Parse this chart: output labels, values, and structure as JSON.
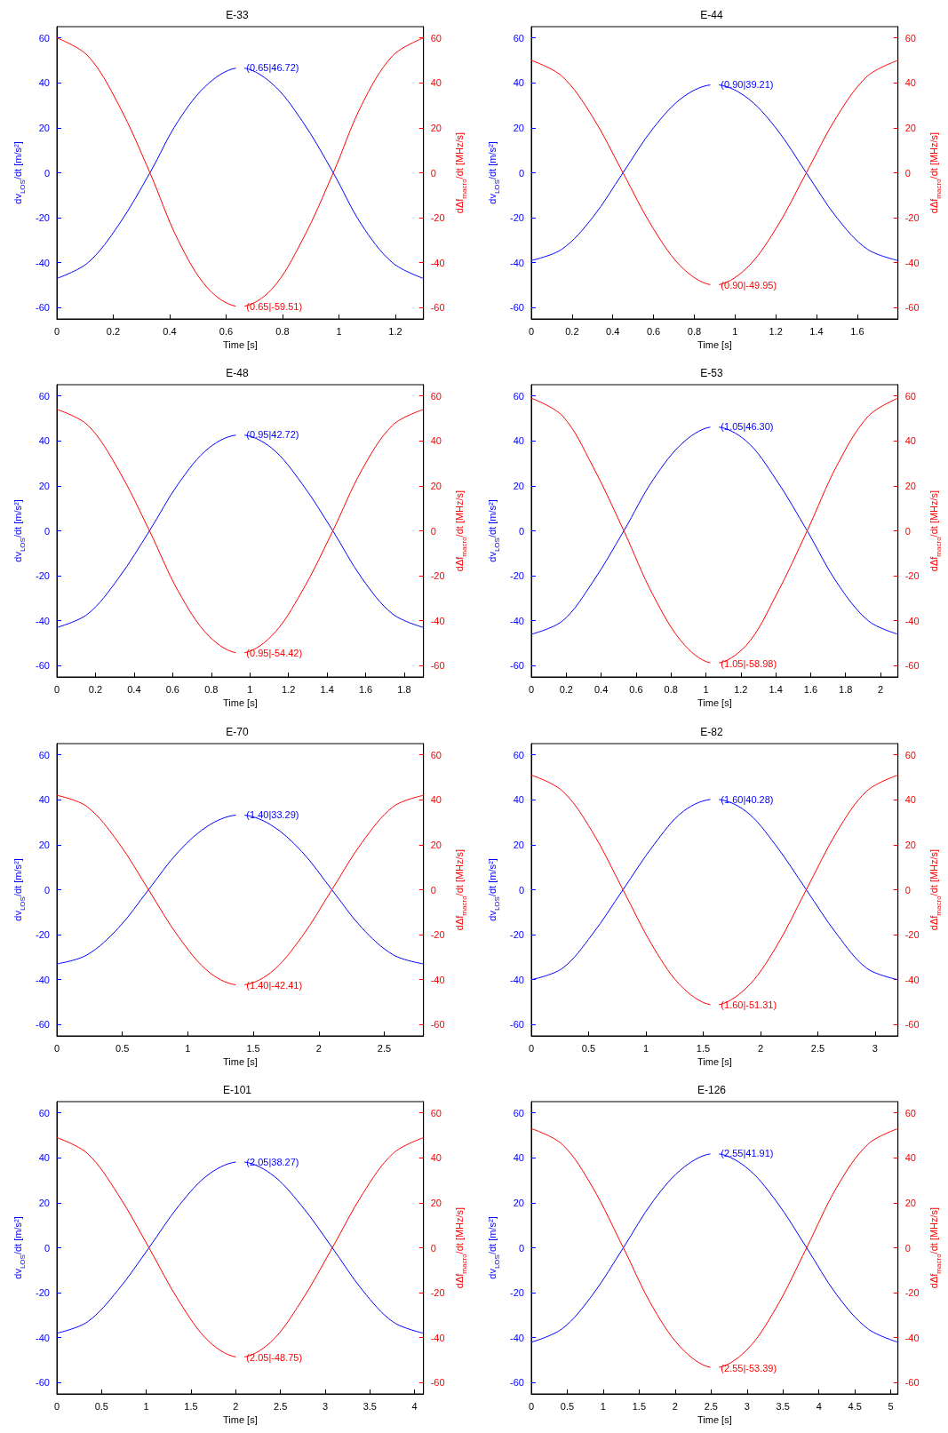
{
  "chart_data": [
    {
      "type": "line",
      "title": "E-33",
      "xlabel": "Time [s]",
      "ylabel": "dv$_{LOS}$/dt [m/s²]",
      "y2label": "dΔf$_{macro}$/dt [MHz/s]",
      "xlim": [
        0,
        1.3
      ],
      "xticks": [
        0,
        0.2,
        0.4,
        0.6,
        0.8,
        1,
        1.2
      ],
      "ylim": [
        -65,
        65
      ],
      "yticks": [
        -60,
        -40,
        -20,
        0,
        20,
        40,
        60
      ],
      "y2lim": [
        -65,
        65
      ],
      "y2ticks": [
        -60,
        -40,
        -20,
        0,
        20,
        40,
        60
      ],
      "x": [
        0,
        0.11,
        0.22,
        0.33,
        0.43,
        0.54,
        0.65,
        0.76,
        0.87,
        0.98,
        1.08,
        1.19,
        1.3
      ],
      "series": [
        {
          "color": "#0000ff",
          "values": [
            -47,
            -40,
            -23,
            0,
            23,
            40,
            46.72,
            40,
            23,
            0,
            -23,
            -40,
            -47
          ]
        },
        {
          "color": "#ff0000",
          "axis": "y2",
          "values": [
            60,
            52,
            30,
            0,
            -30,
            -52,
            -59.51,
            -52,
            -30,
            0,
            30,
            52,
            60
          ]
        }
      ],
      "annotations": [
        {
          "text": "(0.65|46.72)",
          "x": 0.65,
          "y": 46.72
        },
        {
          "text": "(0.65|-59.51)",
          "x": 0.65,
          "y": -59.51
        }
      ]
    },
    {
      "type": "line",
      "title": "E-44",
      "xlabel": "Time [s]",
      "ylabel": "dv$_{LOS}$/dt [m/s²]",
      "y2label": "dΔf$_{macro}$/dt [MHz/s]",
      "xlim": [
        0,
        1.8
      ],
      "xticks": [
        0,
        0.2,
        0.4,
        0.6,
        0.8,
        1,
        1.2,
        1.4,
        1.6
      ],
      "ylim": [
        -65,
        65
      ],
      "yticks": [
        -60,
        -40,
        -20,
        0,
        20,
        40,
        60
      ],
      "y2lim": [
        -65,
        65
      ],
      "y2ticks": [
        -60,
        -40,
        -20,
        0,
        20,
        40,
        60
      ],
      "x": [
        0,
        0.15,
        0.3,
        0.45,
        0.6,
        0.75,
        0.9,
        1.05,
        1.2,
        1.35,
        1.5,
        1.65,
        1.8
      ],
      "series": [
        {
          "color": "#0000ff",
          "values": [
            -39,
            -34,
            -20,
            0,
            20,
            34,
            39.21,
            34,
            20,
            0,
            -20,
            -34,
            -39
          ]
        },
        {
          "color": "#ff0000",
          "axis": "y2",
          "values": [
            50,
            43,
            25,
            0,
            -25,
            -43,
            -49.95,
            -43,
            -25,
            0,
            25,
            43,
            50
          ]
        }
      ],
      "annotations": [
        {
          "text": "(0.90|39.21)",
          "x": 0.9,
          "y": 39.21
        },
        {
          "text": "(0.90|-49.95)",
          "x": 0.9,
          "y": -49.95
        }
      ]
    },
    {
      "type": "line",
      "title": "E-48",
      "xlabel": "Time [s]",
      "ylabel": "dv$_{LOS}$/dt [m/s²]",
      "y2label": "dΔf$_{macro}$/dt [MHz/s]",
      "xlim": [
        0,
        1.9
      ],
      "xticks": [
        0,
        0.2,
        0.4,
        0.6,
        0.8,
        1,
        1.2,
        1.4,
        1.6,
        1.8
      ],
      "ylim": [
        -65,
        65
      ],
      "yticks": [
        -60,
        -40,
        -20,
        0,
        20,
        40,
        60
      ],
      "y2lim": [
        -65,
        65
      ],
      "y2ticks": [
        -60,
        -40,
        -20,
        0,
        20,
        40,
        60
      ],
      "x": [
        0,
        0.16,
        0.32,
        0.48,
        0.63,
        0.79,
        0.95,
        1.11,
        1.27,
        1.43,
        1.58,
        1.74,
        1.9
      ],
      "series": [
        {
          "color": "#0000ff",
          "values": [
            -43,
            -37,
            -21,
            0,
            21,
            37,
            42.72,
            37,
            21,
            0,
            -21,
            -37,
            -43
          ]
        },
        {
          "color": "#ff0000",
          "axis": "y2",
          "values": [
            54,
            47,
            27,
            0,
            -27,
            -47,
            -54.42,
            -47,
            -27,
            0,
            27,
            47,
            54
          ]
        }
      ],
      "annotations": [
        {
          "text": "(0.95|42.72)",
          "x": 0.95,
          "y": 42.72
        },
        {
          "text": "(0.95|-54.42)",
          "x": 0.95,
          "y": -54.42
        }
      ]
    },
    {
      "type": "line",
      "title": "E-53",
      "xlabel": "Time [s]",
      "ylabel": "dv$_{LOS}$/dt [m/s²]",
      "y2label": "dΔf$_{macro}$/dt [MHz/s]",
      "xlim": [
        0,
        2.1
      ],
      "xticks": [
        0,
        0.2,
        0.4,
        0.6,
        0.8,
        1,
        1.2,
        1.4,
        1.6,
        1.8,
        2
      ],
      "ylim": [
        -65,
        65
      ],
      "yticks": [
        -60,
        -40,
        -20,
        0,
        20,
        40,
        60
      ],
      "y2lim": [
        -65,
        65
      ],
      "y2ticks": [
        -60,
        -40,
        -20,
        0,
        20,
        40,
        60
      ],
      "x": [
        0,
        0.18,
        0.35,
        0.53,
        0.7,
        0.88,
        1.05,
        1.23,
        1.4,
        1.58,
        1.75,
        1.93,
        2.1
      ],
      "series": [
        {
          "color": "#0000ff",
          "values": [
            -46,
            -40,
            -23,
            0,
            23,
            40,
            46.3,
            40,
            23,
            0,
            -23,
            -40,
            -46
          ]
        },
        {
          "color": "#ff0000",
          "axis": "y2",
          "values": [
            59,
            51,
            29,
            0,
            -29,
            -51,
            -58.98,
            -51,
            -29,
            0,
            29,
            51,
            59
          ]
        }
      ],
      "annotations": [
        {
          "text": "(1.05|46.30)",
          "x": 1.05,
          "y": 46.3
        },
        {
          "text": "(1.05|-58.98)",
          "x": 1.05,
          "y": -58.98
        }
      ]
    },
    {
      "type": "line",
      "title": "E-70",
      "xlabel": "Time [s]",
      "ylabel": "dv$_{LOS}$/dt [m/s²]",
      "y2label": "dΔf$_{macro}$/dt [MHz/s]",
      "xlim": [
        0,
        2.8
      ],
      "xticks": [
        0,
        0.5,
        1,
        1.5,
        2,
        2.5
      ],
      "ylim": [
        -65,
        65
      ],
      "yticks": [
        -60,
        -40,
        -20,
        0,
        20,
        40,
        60
      ],
      "y2lim": [
        -65,
        65
      ],
      "y2ticks": [
        -60,
        -40,
        -20,
        0,
        20,
        40,
        60
      ],
      "x": [
        0,
        0.23,
        0.47,
        0.7,
        0.93,
        1.17,
        1.4,
        1.63,
        1.87,
        2.1,
        2.33,
        2.57,
        2.8
      ],
      "series": [
        {
          "color": "#0000ff",
          "values": [
            -33,
            -29,
            -17,
            0,
            17,
            29,
            33.29,
            29,
            17,
            0,
            -17,
            -29,
            -33
          ]
        },
        {
          "color": "#ff0000",
          "axis": "y2",
          "values": [
            42,
            37,
            21,
            0,
            -21,
            -37,
            -42.41,
            -37,
            -21,
            0,
            21,
            37,
            42
          ]
        }
      ],
      "annotations": [
        {
          "text": "(1.40|33.29)",
          "x": 1.4,
          "y": 33.29
        },
        {
          "text": "(1.40|-42.41)",
          "x": 1.4,
          "y": -42.41
        }
      ]
    },
    {
      "type": "line",
      "title": "E-82",
      "xlabel": "Time [s]",
      "ylabel": "dv$_{LOS}$/dt [m/s²]",
      "y2label": "dΔf$_{macro}$/dt [MHz/s]",
      "xlim": [
        0,
        3.2
      ],
      "xticks": [
        0,
        0.5,
        1,
        1.5,
        2,
        2.5,
        3
      ],
      "ylim": [
        -65,
        65
      ],
      "yticks": [
        -60,
        -40,
        -20,
        0,
        20,
        40,
        60
      ],
      "y2lim": [
        -65,
        65
      ],
      "y2ticks": [
        -60,
        -40,
        -20,
        0,
        20,
        40,
        60
      ],
      "x": [
        0,
        0.27,
        0.53,
        0.8,
        1.07,
        1.33,
        1.6,
        1.87,
        2.13,
        2.4,
        2.67,
        2.93,
        3.2
      ],
      "series": [
        {
          "color": "#0000ff",
          "values": [
            -40,
            -35,
            -20,
            0,
            20,
            35,
            40.28,
            35,
            20,
            0,
            -20,
            -35,
            -40
          ]
        },
        {
          "color": "#ff0000",
          "axis": "y2",
          "values": [
            51,
            44,
            26,
            0,
            -26,
            -44,
            -51.31,
            -44,
            -26,
            0,
            26,
            44,
            51
          ]
        }
      ],
      "annotations": [
        {
          "text": "(1.60|40.28)",
          "x": 1.6,
          "y": 40.28
        },
        {
          "text": "(1.60|-51.31)",
          "x": 1.6,
          "y": -51.31
        }
      ]
    },
    {
      "type": "line",
      "title": "E-101",
      "xlabel": "Time [s]",
      "ylabel": "dv$_{LOS}$/dt [m/s²]",
      "y2label": "dΔf$_{macro}$/dt [MHz/s]",
      "xlim": [
        0,
        4.1
      ],
      "xticks": [
        0,
        0.5,
        1,
        1.5,
        2,
        2.5,
        3,
        3.5,
        4
      ],
      "ylim": [
        -65,
        65
      ],
      "yticks": [
        -60,
        -40,
        -20,
        0,
        20,
        40,
        60
      ],
      "y2lim": [
        -65,
        65
      ],
      "y2ticks": [
        -60,
        -40,
        -20,
        0,
        20,
        40,
        60
      ],
      "x": [
        0,
        0.34,
        0.68,
        1.03,
        1.37,
        1.71,
        2.05,
        2.39,
        2.73,
        3.08,
        3.42,
        3.76,
        4.1
      ],
      "series": [
        {
          "color": "#0000ff",
          "values": [
            -38,
            -33,
            -19,
            0,
            19,
            33,
            38.27,
            33,
            19,
            0,
            -19,
            -33,
            -38
          ]
        },
        {
          "color": "#ff0000",
          "axis": "y2",
          "values": [
            49,
            42,
            24,
            0,
            -24,
            -42,
            -48.75,
            -42,
            -24,
            0,
            24,
            42,
            49
          ]
        }
      ],
      "annotations": [
        {
          "text": "(2.05|38.27)",
          "x": 2.05,
          "y": 38.27
        },
        {
          "text": "(2.05|-48.75)",
          "x": 2.05,
          "y": -48.75
        }
      ]
    },
    {
      "type": "line",
      "title": "E-126",
      "xlabel": "Time [s]",
      "ylabel": "dv$_{LOS}$/dt [m/s²]",
      "y2label": "dΔf$_{macro}$/dt [MHz/s]",
      "xlim": [
        0,
        5.1
      ],
      "xticks": [
        0,
        0.5,
        1,
        1.5,
        2,
        2.5,
        3,
        3.5,
        4,
        4.5,
        5
      ],
      "ylim": [
        -65,
        65
      ],
      "yticks": [
        -60,
        -40,
        -20,
        0,
        20,
        40,
        60
      ],
      "y2lim": [
        -65,
        65
      ],
      "y2ticks": [
        -60,
        -40,
        -20,
        0,
        20,
        40,
        60
      ],
      "x": [
        0,
        0.43,
        0.85,
        1.28,
        1.7,
        2.13,
        2.55,
        2.98,
        3.4,
        3.83,
        4.25,
        4.68,
        5.1
      ],
      "series": [
        {
          "color": "#0000ff",
          "values": [
            -42,
            -36,
            -21,
            0,
            21,
            36,
            41.91,
            36,
            21,
            0,
            -21,
            -36,
            -42
          ]
        },
        {
          "color": "#ff0000",
          "axis": "y2",
          "values": [
            53,
            46,
            27,
            0,
            -27,
            -46,
            -53.39,
            -46,
            -27,
            0,
            27,
            46,
            53
          ]
        }
      ],
      "annotations": [
        {
          "text": "(2.55|41.91)",
          "x": 2.55,
          "y": 41.91
        },
        {
          "text": "(2.55|-53.39)",
          "x": 2.55,
          "y": -53.39
        }
      ]
    }
  ]
}
